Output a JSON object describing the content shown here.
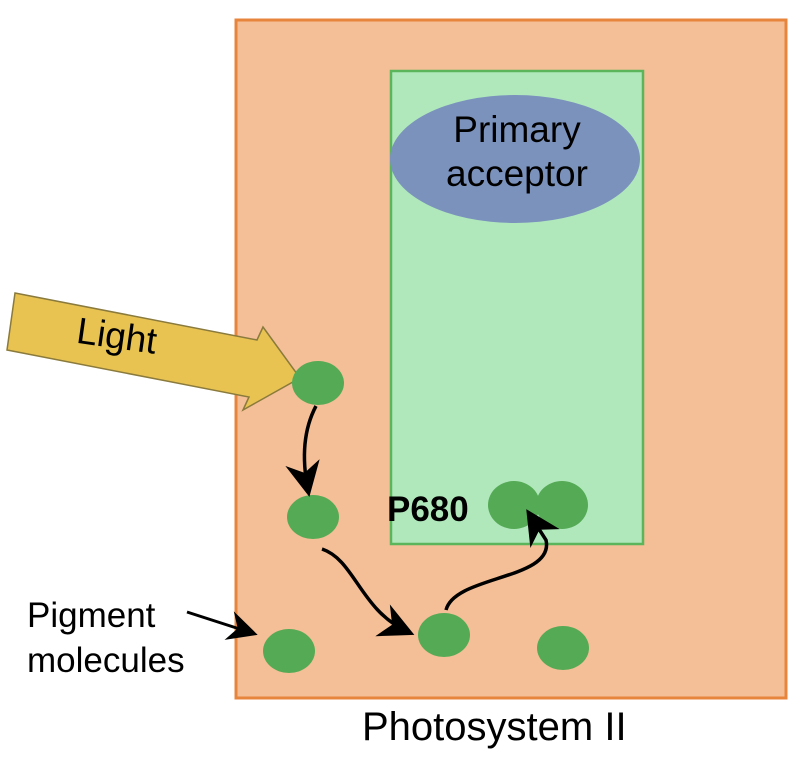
{
  "labels": {
    "light": "Light",
    "primary_acceptor_line1": "Primary",
    "primary_acceptor_line2": "acceptor",
    "reaction_center": "P680",
    "pigment_line1": "Pigment",
    "pigment_line2": "molecules",
    "photosystem": "Photosystem II"
  },
  "colors": {
    "photosystem_fill": "#F4BF96",
    "photosystem_border": "#E8853C",
    "reaction_center_fill": "#B0E8BC",
    "reaction_center_border": "#5BB55B",
    "primary_acceptor_fill": "#7B92BD",
    "pigment_fill": "#55AA55",
    "light_arrow_fill": "#E8C352",
    "light_arrow_border": "#8A7A3C",
    "arrow_color": "#000000"
  }
}
